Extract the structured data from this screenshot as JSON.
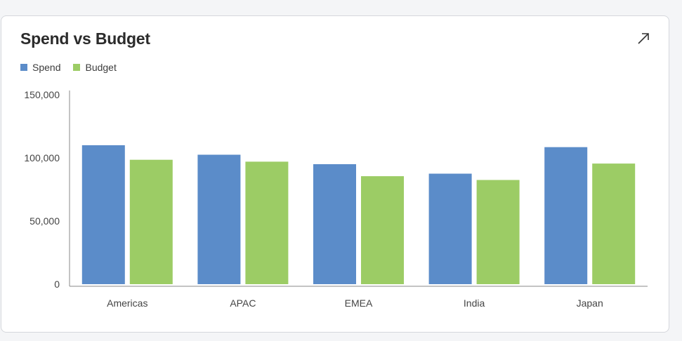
{
  "colors": {
    "spend": "#5b8cc9",
    "budget": "#9ccc65",
    "axis": "#888888"
  },
  "header": {
    "expand_icon": "expand-arrow-icon"
  },
  "chart_data": {
    "type": "bar",
    "title": "Spend vs Budget",
    "categories": [
      "Americas",
      "APAC",
      "EMEA",
      "India",
      "Japan"
    ],
    "series": [
      {
        "name": "Spend",
        "values": [
          110000,
          102500,
          95000,
          87500,
          108500
        ]
      },
      {
        "name": "Budget",
        "values": [
          98500,
          97000,
          85500,
          82500,
          95500
        ]
      }
    ],
    "ylim": [
      0,
      150000
    ],
    "yticks": [
      "0",
      "50,000",
      "100,000",
      "150,000"
    ],
    "ytick_values": [
      0,
      50000,
      100000,
      150000
    ],
    "grid": false,
    "legend": "top-left"
  }
}
